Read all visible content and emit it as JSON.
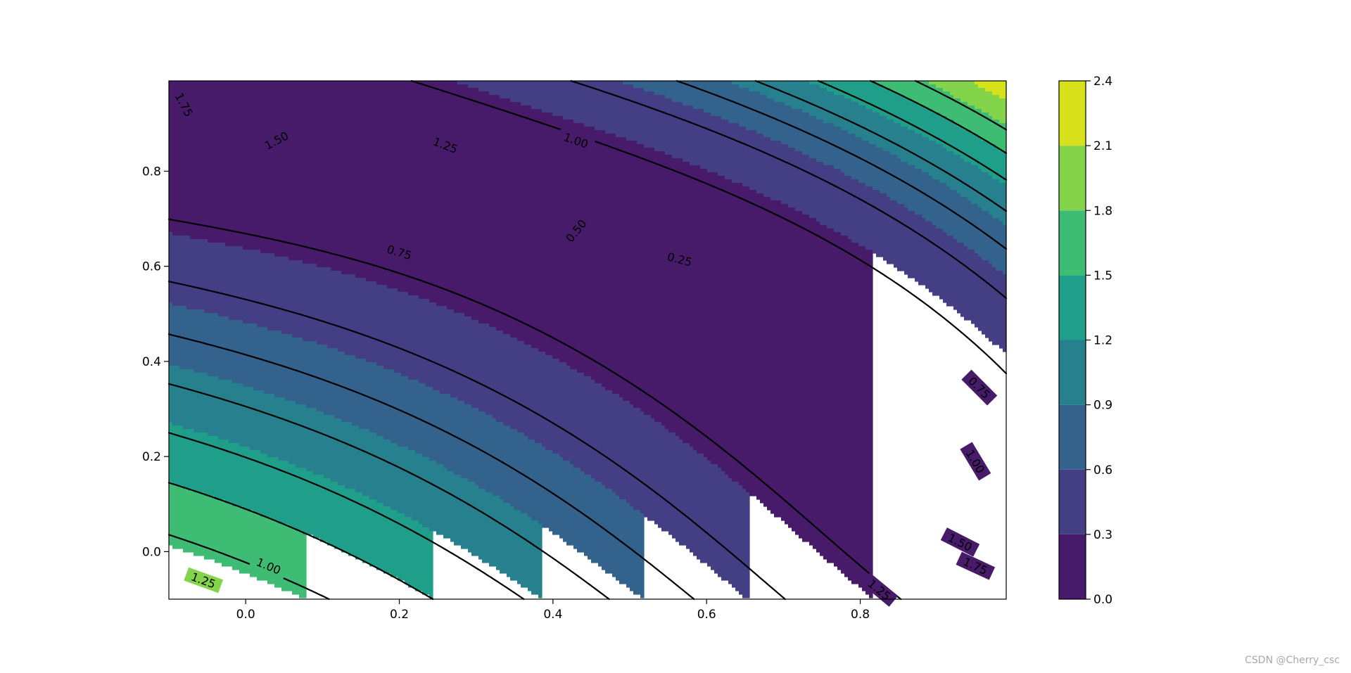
{
  "chart_data": {
    "type": "contour",
    "function": "(x^2 + y - 1.1)^2 + (x + y^2 - 0.7)^2 (pattern of the plotted field)",
    "x_range": [
      -0.1,
      0.99
    ],
    "y_range": [
      -0.1,
      0.99
    ],
    "x_ticks": [
      "0.0",
      "0.2",
      "0.4",
      "0.6",
      "0.8"
    ],
    "x_tick_values": [
      0.0,
      0.2,
      0.4,
      0.6,
      0.8
    ],
    "y_ticks": [
      "0.0",
      "0.2",
      "0.4",
      "0.6",
      "0.8"
    ],
    "y_tick_values": [
      0.0,
      0.2,
      0.4,
      0.6,
      0.8
    ],
    "fill_levels": [
      0.0,
      0.3,
      0.6,
      0.9,
      1.2,
      1.5,
      1.8,
      2.1,
      2.4
    ],
    "fill_colors": [
      "#471b6a",
      "#443f85",
      "#33628d",
      "#27808e",
      "#1f9e89",
      "#3fbc73",
      "#84d44b",
      "#d7e11c"
    ],
    "line_levels": [
      0.25,
      0.5,
      0.75,
      1.0,
      1.25,
      1.5,
      1.75
    ],
    "line_labels": [
      "0.25",
      "0.50",
      "0.75",
      "1.00",
      "1.25",
      "1.50",
      "1.75"
    ],
    "colorbar": {
      "ticks": [
        "0.0",
        "0.3",
        "0.6",
        "0.9",
        "1.2",
        "1.5",
        "1.8",
        "2.1",
        "2.4"
      ],
      "tick_values": [
        0.0,
        0.3,
        0.6,
        0.9,
        1.2,
        1.5,
        1.8,
        2.1,
        2.4
      ]
    },
    "contour_label_marks": [
      {
        "text": "1.75",
        "x": -0.08,
        "y": 0.94
      },
      {
        "text": "1.50",
        "x": 0.04,
        "y": 0.865
      },
      {
        "text": "1.25",
        "x": 0.26,
        "y": 0.855
      },
      {
        "text": "1.00",
        "x": 0.43,
        "y": 0.865
      },
      {
        "text": "0.75",
        "x": 0.2,
        "y": 0.63
      },
      {
        "text": "0.50",
        "x": 0.43,
        "y": 0.675
      },
      {
        "text": "0.25",
        "x": 0.565,
        "y": 0.615
      },
      {
        "text": "0.75",
        "x": 0.955,
        "y": 0.345
      },
      {
        "text": "1.00",
        "x": 0.95,
        "y": 0.19
      },
      {
        "text": "1.50",
        "x": 0.93,
        "y": 0.02
      },
      {
        "text": "1.75",
        "x": 0.95,
        "y": -0.03
      },
      {
        "text": "1.25",
        "x": 0.825,
        "y": -0.08
      },
      {
        "text": "1.00",
        "x": 0.03,
        "y": -0.03
      },
      {
        "text": "1.25",
        "x": -0.055,
        "y": -0.06
      }
    ]
  },
  "watermark": "CSDN @Cherry_csc"
}
